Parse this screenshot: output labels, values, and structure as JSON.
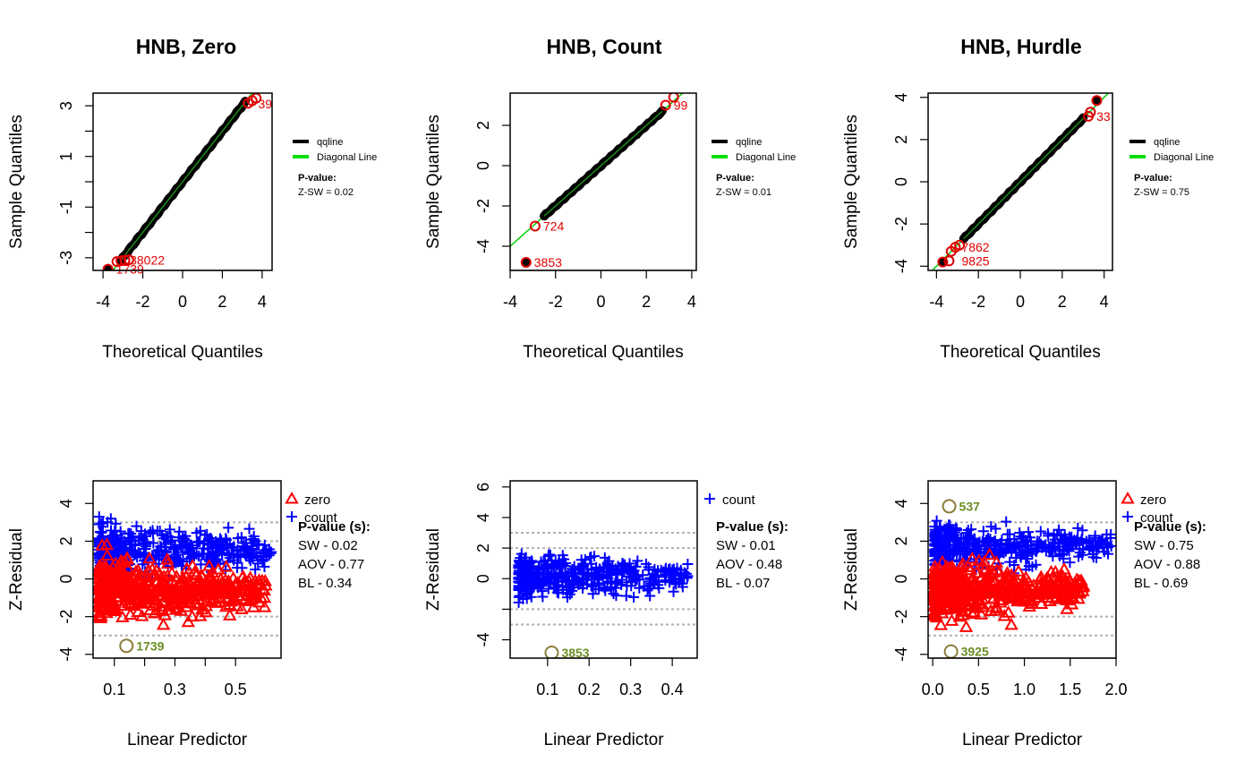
{
  "chart_data": [
    {
      "type": "scatter",
      "subtype": "qq",
      "title": "HNB, Zero",
      "xlabel": "Theoretical Quantiles",
      "ylabel": "Sample Quantiles",
      "xlim": [
        -4.5,
        4.5
      ],
      "ylim": [
        -3.5,
        3.5
      ],
      "xticks": [
        -4,
        -2,
        0,
        2,
        4
      ],
      "yticks": [
        -3,
        -2,
        -1,
        0,
        1,
        2,
        3
      ],
      "ytick_labels": [
        "-3",
        "",
        "-1",
        "",
        "1",
        "",
        "3"
      ],
      "qq_range": [
        -3.1,
        3.15
      ],
      "outliers": [
        {
          "x": -3.75,
          "y": -3.45,
          "label": "1739",
          "filled": true
        },
        {
          "x": -3.3,
          "y": -3.15,
          "label": "",
          "filled": false
        },
        {
          "x": -3.1,
          "y": -3.12,
          "label": "",
          "filled": false
        },
        {
          "x": -2.9,
          "y": -3.1,
          "label": "",
          "filled": false
        },
        {
          "x": -2.7,
          "y": -3.08,
          "label": "",
          "filled": false
        },
        {
          "x": 3.3,
          "y": 3.1,
          "label": "",
          "filled": false
        },
        {
          "x": 3.5,
          "y": 3.2,
          "label": "",
          "filled": false
        },
        {
          "x": 3.7,
          "y": 3.3,
          "label": "",
          "filled": false
        }
      ],
      "cluster_labels": [
        {
          "x": -2.65,
          "y": -3.1,
          "text": "38022",
          "anchor": "start"
        },
        {
          "x": 3.8,
          "y": 3.08,
          "text": "39",
          "anchor": "start"
        }
      ],
      "legend": {
        "items": [
          "qqline",
          "Diagonal Line"
        ],
        "colors": [
          "#000000",
          "#00dd00"
        ]
      },
      "pvalue": {
        "title": "P-value:",
        "lines": [
          "Z-SW = 0.02"
        ]
      }
    },
    {
      "type": "scatter",
      "subtype": "qq",
      "title": "HNB, Count",
      "xlabel": "Theoretical Quantiles",
      "ylabel": "Sample Quantiles",
      "xlim": [
        -4,
        4.2
      ],
      "ylim": [
        -5.2,
        3.6
      ],
      "xticks": [
        -4,
        -2,
        0,
        2,
        4
      ],
      "yticks": [
        -4,
        -2,
        0,
        2
      ],
      "ytick_labels": [
        "-4",
        "-2",
        "0",
        "2"
      ],
      "qq_range": [
        -2.5,
        2.7
      ],
      "outliers": [
        {
          "x": -3.3,
          "y": -4.8,
          "label": "3853",
          "filled": true
        },
        {
          "x": -2.9,
          "y": -3.0,
          "label": "724",
          "filled": false
        },
        {
          "x": 2.85,
          "y": 3.0,
          "label": "99",
          "filled": false
        },
        {
          "x": 3.2,
          "y": 3.4,
          "label": "",
          "filled": false
        }
      ],
      "cluster_labels": [],
      "legend": {
        "items": [
          "qqline",
          "Diagonal Line"
        ],
        "colors": [
          "#000000",
          "#00dd00"
        ]
      },
      "pvalue": {
        "title": "P-value:",
        "lines": [
          "Z-SW = 0.01"
        ]
      }
    },
    {
      "type": "scatter",
      "subtype": "qq",
      "title": "HNB, Hurdle",
      "xlabel": "Theoretical Quantiles",
      "ylabel": "Sample Quantiles",
      "xlim": [
        -4.4,
        4.4
      ],
      "ylim": [
        -4.2,
        4.2
      ],
      "xticks": [
        -4,
        -2,
        0,
        2,
        4
      ],
      "yticks": [
        -4,
        -2,
        0,
        2,
        4
      ],
      "ytick_labels": [
        "-4",
        "-2",
        "0",
        "2",
        "4"
      ],
      "qq_range": [
        -2.7,
        3.0
      ],
      "outliers": [
        {
          "x": -3.7,
          "y": -3.8,
          "label": "",
          "filled": true
        },
        {
          "x": -3.4,
          "y": -3.75,
          "label": "",
          "filled": false
        },
        {
          "x": -3.3,
          "y": -3.3,
          "label": "",
          "filled": false
        },
        {
          "x": -3.1,
          "y": -3.1,
          "label": "",
          "filled": false
        },
        {
          "x": -2.9,
          "y": -3.0,
          "label": "",
          "filled": false
        },
        {
          "x": 3.65,
          "y": 3.85,
          "label": "",
          "filled": true
        },
        {
          "x": 3.35,
          "y": 3.3,
          "label": "",
          "filled": false
        },
        {
          "x": 3.25,
          "y": 3.1,
          "label": "33",
          "filled": false
        }
      ],
      "cluster_labels": [
        {
          "x": -2.8,
          "y": -3.1,
          "text": "7862",
          "anchor": "start"
        },
        {
          "x": -2.8,
          "y": -3.75,
          "text": "9825",
          "anchor": "start"
        }
      ],
      "legend": {
        "items": [
          "qqline",
          "Diagonal Line"
        ],
        "colors": [
          "#000000",
          "#00dd00"
        ]
      },
      "pvalue": {
        "title": "P-value:",
        "lines": [
          "Z-SW = 0.75"
        ]
      }
    },
    {
      "type": "scatter",
      "title": "",
      "xlabel": "Linear Predictor",
      "ylabel": "Z-Residual",
      "xlim": [
        0.03,
        0.65
      ],
      "ylim": [
        -4.2,
        5.2
      ],
      "xticks": [
        0.1,
        0.2,
        0.3,
        0.4,
        0.5
      ],
      "xtick_labels": [
        "0.1",
        "",
        "0.3",
        "",
        "0.5"
      ],
      "yticks": [
        -4,
        -2,
        0,
        2,
        4
      ],
      "hlines": [
        -3,
        -2,
        2,
        3
      ],
      "clouds": [
        {
          "series": "count",
          "color": "#0000ff",
          "marker": "+",
          "x_range": [
            0.05,
            0.62
          ],
          "y_center": 1.5,
          "y_spread": 1.1
        },
        {
          "series": "zero",
          "color": "#ff0000",
          "marker": "triangle",
          "x_range": [
            0.05,
            0.6
          ],
          "y_center": -0.6,
          "y_spread": 1.3
        }
      ],
      "outliers": [
        {
          "x": 0.14,
          "y": -3.55,
          "label": "1739"
        }
      ],
      "legend": {
        "items": [
          "zero",
          "count"
        ],
        "markers": [
          "triangle",
          "+"
        ],
        "colors": [
          "#ff0000",
          "#0000ff"
        ]
      },
      "pvalue": {
        "title": "P-value (s):",
        "lines": [
          "SW - 0.02",
          "AOV - 0.77",
          "BL - 0.34"
        ]
      }
    },
    {
      "type": "scatter",
      "title": "",
      "xlabel": "Linear Predictor",
      "ylabel": "Z-Residual",
      "xlim": [
        0.01,
        0.46
      ],
      "ylim": [
        -5.2,
        6.4
      ],
      "xticks": [
        0.1,
        0.2,
        0.3,
        0.4
      ],
      "xtick_labels": [
        "0.1",
        "0.2",
        "0.3",
        "0.4"
      ],
      "yticks": [
        -4,
        -2,
        0,
        2,
        4,
        6
      ],
      "ytick_labels": [
        "-4",
        "",
        "0",
        "2",
        "4",
        "6"
      ],
      "hlines": [
        -3,
        -2,
        2,
        3
      ],
      "clouds": [
        {
          "series": "count",
          "color": "#0000ff",
          "marker": "+",
          "x_range": [
            0.03,
            0.44
          ],
          "y_center": 0.1,
          "y_spread": 1.2
        }
      ],
      "outliers": [
        {
          "x": 0.11,
          "y": -4.85,
          "label": "3853"
        }
      ],
      "legend": {
        "items": [
          "count"
        ],
        "markers": [
          "+"
        ],
        "colors": [
          "#0000ff"
        ]
      },
      "pvalue": {
        "title": "P-value (s):",
        "lines": [
          "SW - 0.01",
          "AOV - 0.48",
          "BL - 0.07"
        ]
      }
    },
    {
      "type": "scatter",
      "title": "",
      "xlabel": "Linear Predictor",
      "ylabel": "Z-Residual",
      "xlim": [
        -0.05,
        2.0
      ],
      "ylim": [
        -4.2,
        5.2
      ],
      "xticks": [
        0.0,
        0.5,
        1.0,
        1.5,
        2.0
      ],
      "xtick_labels": [
        "0.0",
        "0.5",
        "1.0",
        "1.5",
        "2.0"
      ],
      "yticks": [
        -4,
        -2,
        0,
        2,
        4
      ],
      "hlines": [
        -3,
        -2,
        2,
        3
      ],
      "clouds": [
        {
          "series": "count",
          "color": "#0000ff",
          "marker": "+",
          "x_range": [
            0.02,
            1.95
          ],
          "y_center": 1.7,
          "y_spread": 1.0
        },
        {
          "series": "zero",
          "color": "#ff0000",
          "marker": "triangle",
          "x_range": [
            0.02,
            1.65
          ],
          "y_center": -0.6,
          "y_spread": 1.2
        }
      ],
      "outliers": [
        {
          "x": 0.18,
          "y": 3.85,
          "label": "537"
        },
        {
          "x": 0.2,
          "y": -3.85,
          "label": "3925"
        }
      ],
      "legend": {
        "items": [
          "zero",
          "count"
        ],
        "markers": [
          "triangle",
          "+"
        ],
        "colors": [
          "#ff0000",
          "#0000ff"
        ]
      },
      "pvalue": {
        "title": "P-value (s):",
        "lines": [
          "SW - 0.75",
          "AOV - 0.88",
          "BL - 0.69"
        ]
      }
    }
  ]
}
